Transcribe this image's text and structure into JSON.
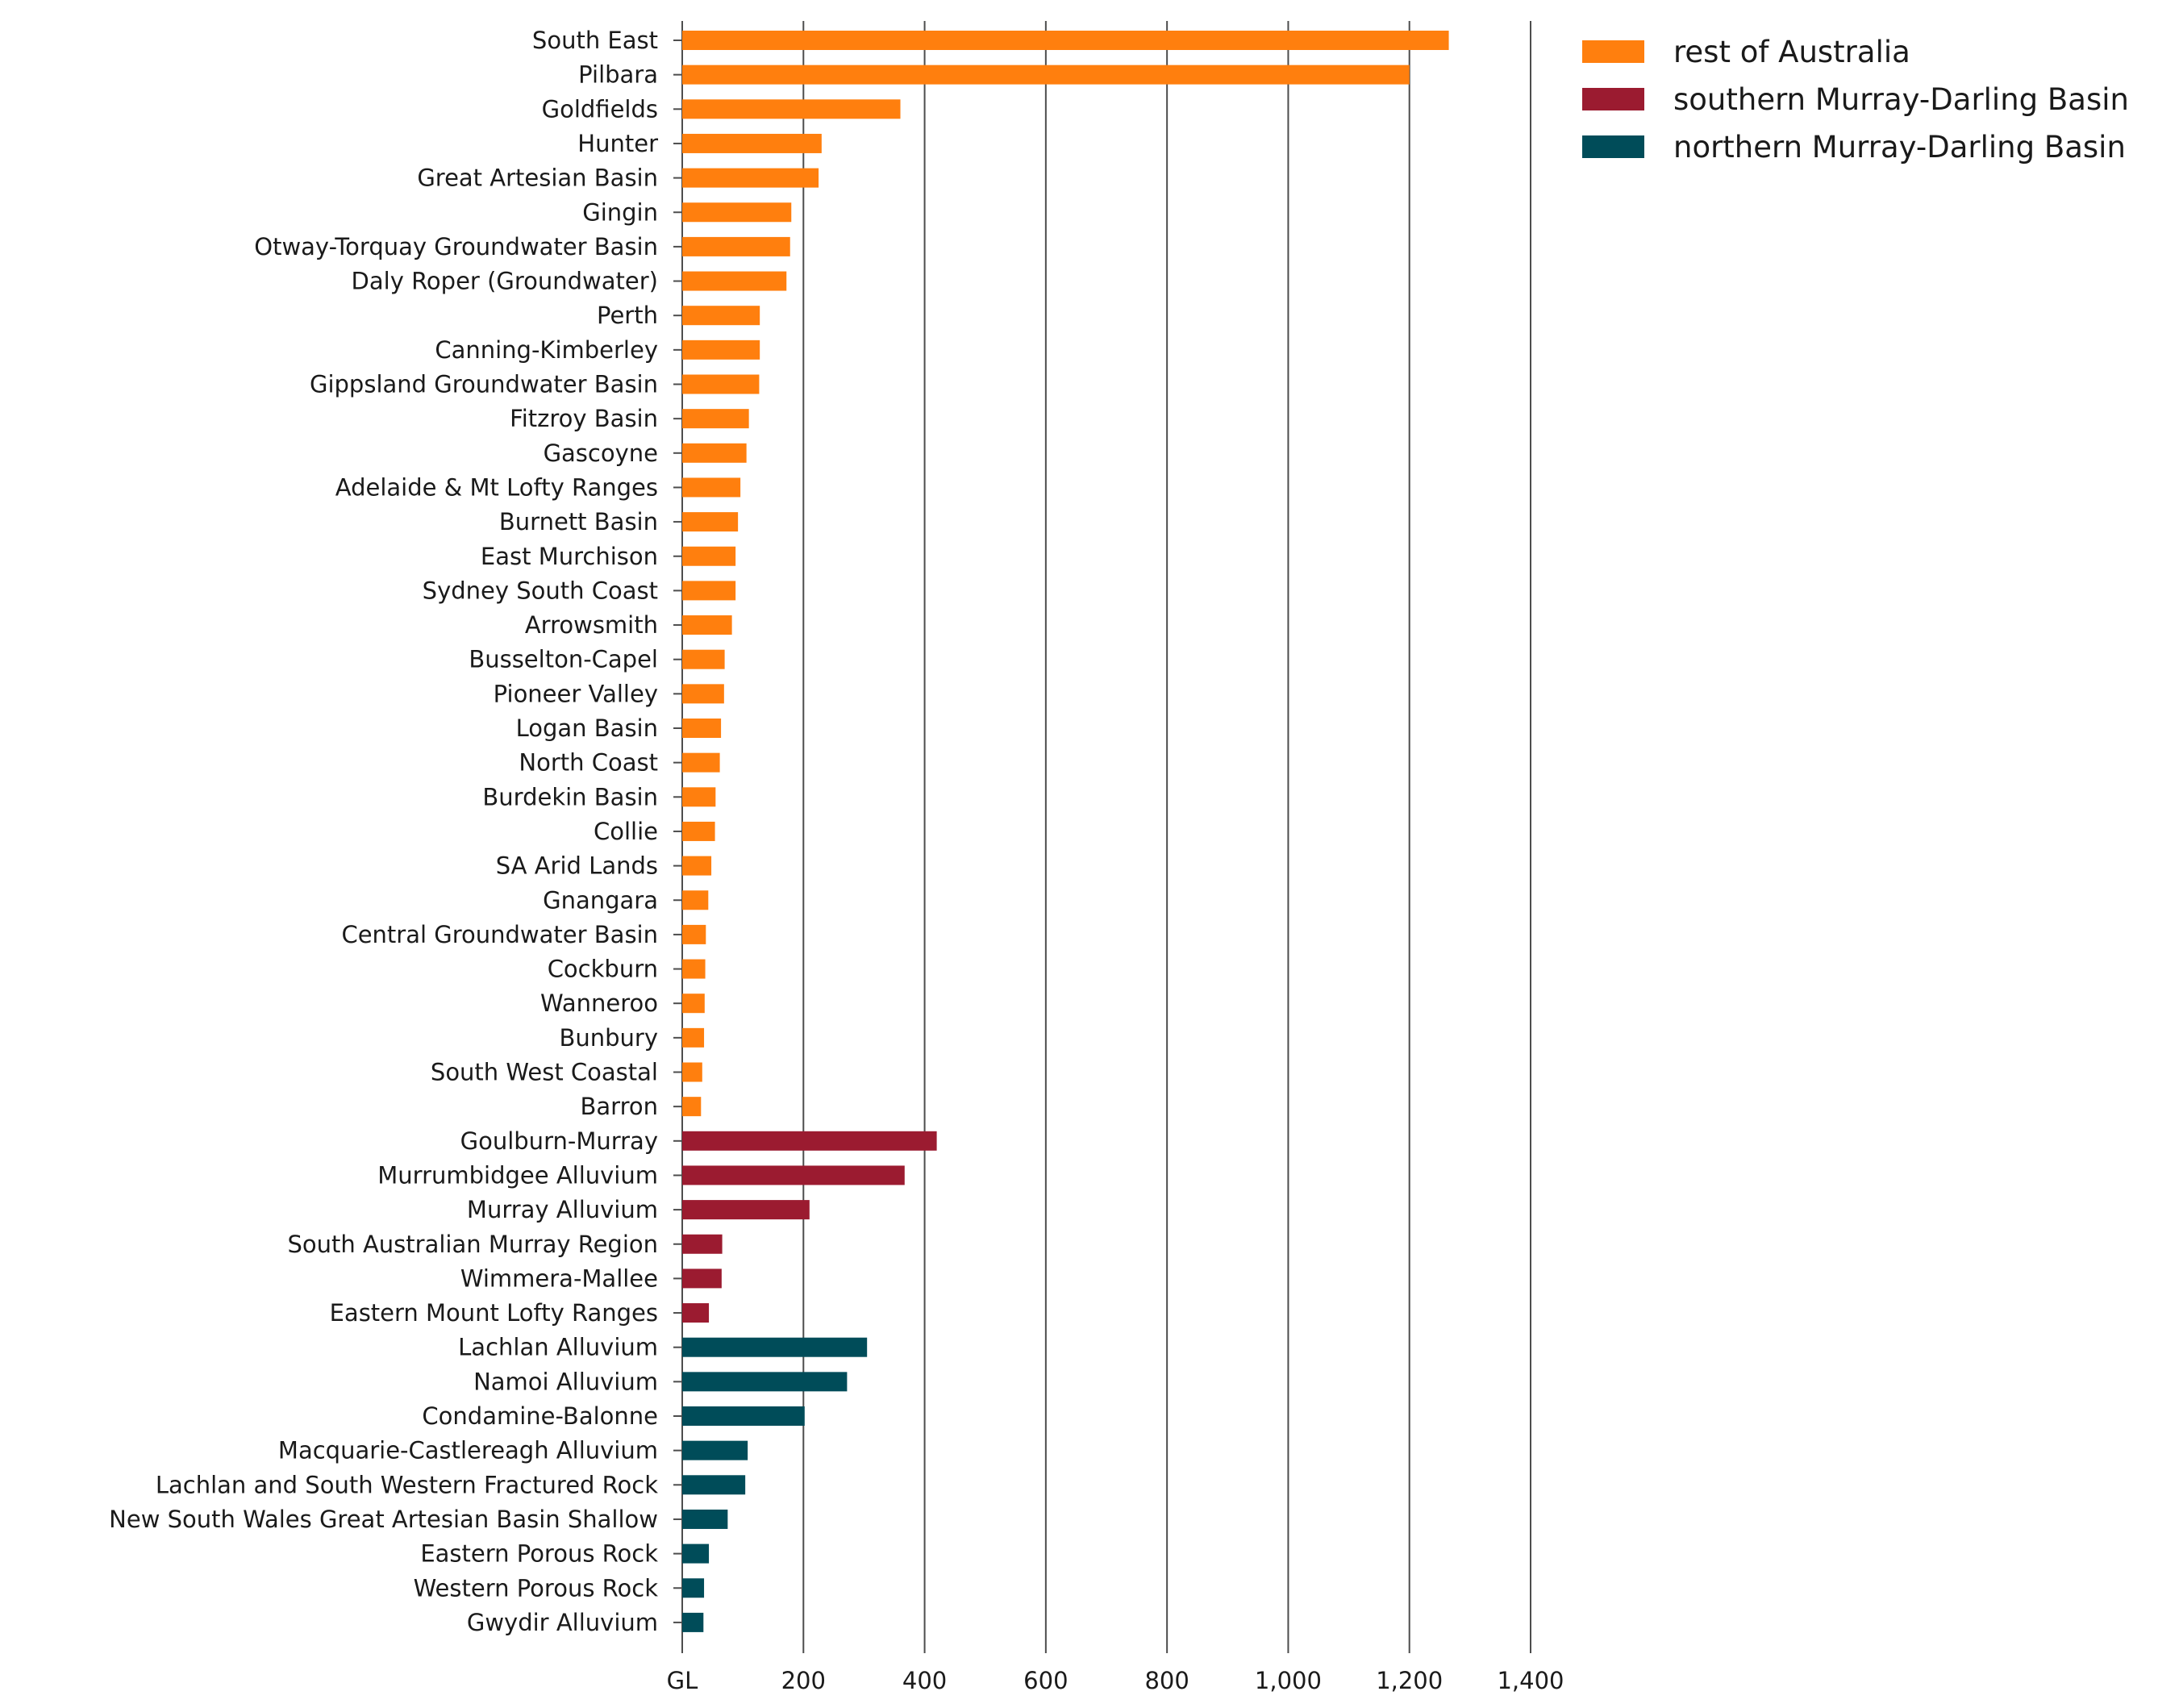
{
  "chart_data": {
    "type": "bar",
    "orientation": "horizontal",
    "title": "",
    "xlabel": "",
    "ylabel": "",
    "x_unit": "GL",
    "xlim": [
      0,
      1400
    ],
    "x_ticks": [
      0,
      200,
      400,
      600,
      800,
      1000,
      1200,
      1400
    ],
    "x_tick_labels": [
      "GL",
      "200",
      "400",
      "600",
      "800",
      "1,000",
      "1,200",
      "1,400"
    ],
    "grid": "vertical",
    "legend": {
      "placement": "top-right"
    },
    "series": [
      {
        "name": "rest of Australia",
        "color": "#ff7f0e",
        "categories": [
          "South East",
          "Pilbara",
          "Goldfields",
          "Hunter",
          "Great Artesian Basin",
          "Gingin",
          "Otway-Torquay Groundwater Basin",
          "Daly Roper (Groundwater)",
          "Perth",
          "Canning-Kimberley",
          "Gippsland Groundwater Basin",
          "Fitzroy Basin",
          "Gascoyne",
          "Adelaide & Mt Lofty Ranges",
          "Burnett Basin",
          "East Murchison",
          "Sydney South Coast",
          "Arrowsmith",
          "Busselton-Capel",
          "Pioneer Valley",
          "Logan Basin",
          "North Coast",
          "Burdekin Basin",
          "Collie",
          "SA Arid Lands",
          "Gnangara",
          "Central Groundwater Basin",
          "Cockburn",
          "Wanneroo",
          "Bunbury",
          "South West Coastal",
          "Barron"
        ],
        "values": [
          1265,
          1200,
          360,
          230,
          225,
          180,
          178,
          172,
          128,
          128,
          127,
          110,
          106,
          96,
          92,
          88,
          88,
          82,
          70,
          69,
          64,
          62,
          55,
          54,
          48,
          43,
          39,
          38,
          37,
          36,
          33,
          31
        ]
      },
      {
        "name": "southern Murray-Darling Basin",
        "color": "#9b1b30",
        "categories": [
          "Goulburn-Murray",
          "Murrumbidgee Alluvium",
          "Murray Alluvium",
          "South Australian Murray Region",
          "Wimmera-Mallee",
          "Eastern Mount Lofty Ranges"
        ],
        "values": [
          420,
          367,
          210,
          66,
          65,
          44
        ]
      },
      {
        "name": "northern Murray-Darling Basin",
        "color": "#004c59",
        "categories": [
          "Lachlan Alluvium",
          "Namoi Alluvium",
          "Condamine-Balonne",
          "Macquarie-Castlereagh Alluvium",
          "Lachlan and South Western Fractured Rock",
          "New South Wales Great Artesian Basin Shallow",
          "Eastern Porous Rock",
          "Western Porous Rock",
          "Gwydir Alluvium"
        ],
        "values": [
          305,
          272,
          202,
          108,
          104,
          75,
          44,
          36,
          35
        ]
      }
    ]
  }
}
